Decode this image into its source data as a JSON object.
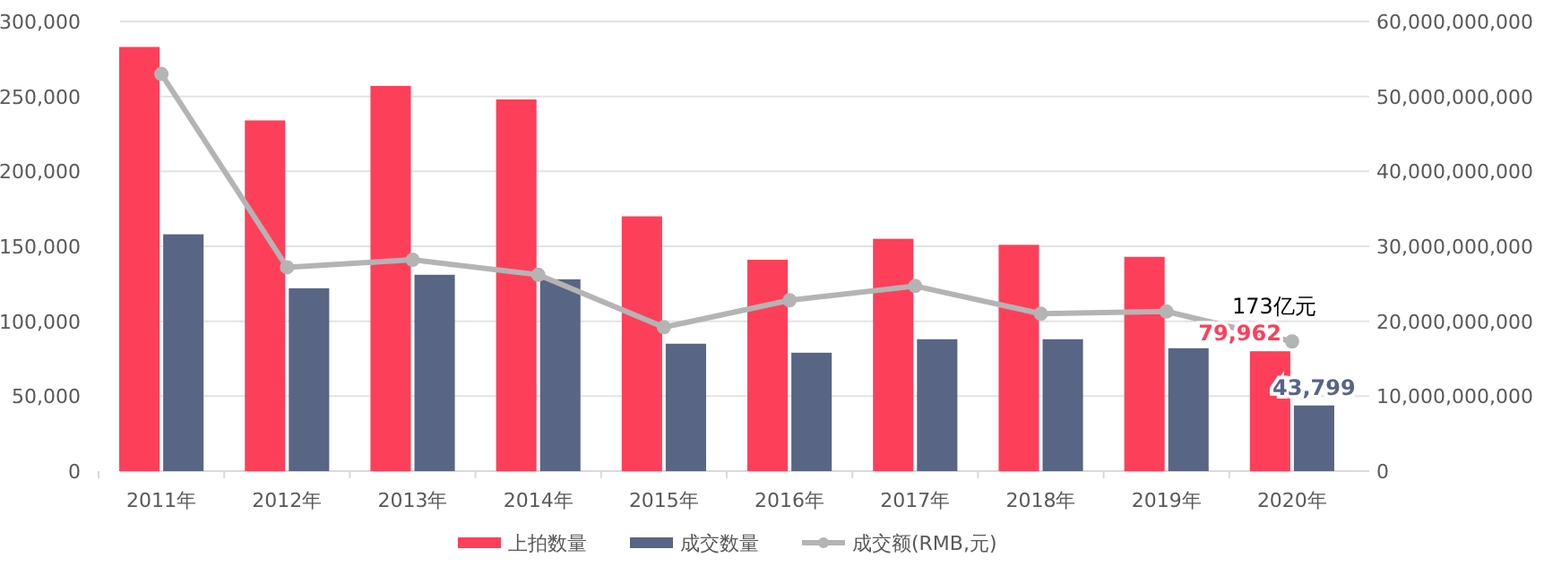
{
  "chart_data": {
    "type": "bar",
    "categories": [
      "2011年",
      "2012年",
      "2013年",
      "2014年",
      "2015年",
      "2016年",
      "2017年",
      "2018年",
      "2019年",
      "2020年"
    ],
    "series": [
      {
        "name": "上拍数量",
        "color": "#fe3f5a",
        "values": [
          283000,
          234000,
          257000,
          248000,
          170000,
          141000,
          155000,
          151000,
          143000,
          79962
        ],
        "value_labels": [
          null,
          null,
          null,
          null,
          null,
          null,
          null,
          null,
          null,
          "79,962"
        ]
      },
      {
        "name": "成交数量",
        "color": "#586584",
        "values": [
          158000,
          122000,
          131000,
          128000,
          85000,
          79000,
          88000,
          88000,
          82000,
          43799
        ],
        "value_labels": [
          null,
          null,
          null,
          null,
          null,
          null,
          null,
          null,
          null,
          "43,799"
        ]
      },
      {
        "name": "成交额(RMB,元)",
        "type": "line",
        "axis": "y2",
        "color": "#b4b4b4",
        "marker": "circle",
        "values": [
          53000000000,
          27200000000,
          28200000000,
          26200000000,
          19200000000,
          22800000000,
          24700000000,
          21000000000,
          21300000000,
          17300000000
        ]
      }
    ],
    "ylim": [
      0,
      300000
    ],
    "yticks": [
      {
        "value": 0,
        "label": "0"
      },
      {
        "value": 50000,
        "label": "50,000"
      },
      {
        "value": 100000,
        "label": "100,000"
      },
      {
        "value": 150000,
        "label": "150,000"
      },
      {
        "value": 200000,
        "label": "200,000"
      },
      {
        "value": 250000,
        "label": "250,000"
      },
      {
        "value": 300000,
        "label": "300,000"
      }
    ],
    "y2lim": [
      0,
      60000000000
    ],
    "y2ticks": [
      {
        "value": 0,
        "label": "0"
      },
      {
        "value": 10000000000,
        "label": "10,000,000,000"
      },
      {
        "value": 20000000000,
        "label": "20,000,000,000"
      },
      {
        "value": 30000000000,
        "label": "30,000,000,000"
      },
      {
        "value": 40000000000,
        "label": "40,000,000,000"
      },
      {
        "value": 50000000000,
        "label": "50,000,000,000"
      },
      {
        "value": 60000000000,
        "label": "60,000,000,000"
      }
    ],
    "annotations": [
      "173亿元"
    ],
    "grid": "y",
    "legend": "bottom"
  }
}
